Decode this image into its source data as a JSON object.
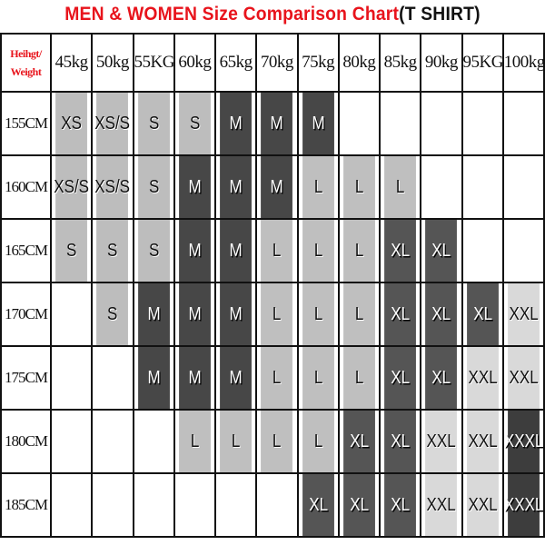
{
  "title": {
    "main": "MEN & WOMEN Size Comparison Chart",
    "suffix": "(T SHIRT)"
  },
  "corner_label": {
    "line1": "Heihgt/",
    "line2": "Weight"
  },
  "weights": [
    "45kg",
    "50kg",
    "55KG",
    "60kg",
    "65kg",
    "70kg",
    "75kg",
    "80kg",
    "85kg",
    "90kg",
    "95KG",
    "100kg"
  ],
  "rows": [
    {
      "height": "155CM",
      "sizes": [
        "XS",
        "XS/S",
        "S",
        "S",
        "M",
        "M",
        "M",
        "",
        "",
        "",
        "",
        ""
      ]
    },
    {
      "height": "160CM",
      "sizes": [
        "XS/S",
        "XS/S",
        "S",
        "M",
        "M",
        "M",
        "L",
        "L",
        "L",
        "",
        "",
        ""
      ]
    },
    {
      "height": "165CM",
      "sizes": [
        "S",
        "S",
        "S",
        "M",
        "M",
        "L",
        "L",
        "L",
        "XL",
        "XL",
        "",
        ""
      ]
    },
    {
      "height": "170CM",
      "sizes": [
        "",
        "S",
        "M",
        "M",
        "M",
        "L",
        "L",
        "L",
        "XL",
        "XL",
        "XL",
        "XXL"
      ]
    },
    {
      "height": "175CM",
      "sizes": [
        "",
        "",
        "M",
        "M",
        "M",
        "L",
        "L",
        "L",
        "XL",
        "XL",
        "XXL",
        "XXL"
      ]
    },
    {
      "height": "180CM",
      "sizes": [
        "",
        "",
        "",
        "L",
        "L",
        "L",
        "L",
        "XL",
        "XL",
        "XXL",
        "XXL",
        "XXXL"
      ]
    },
    {
      "height": "185CM",
      "sizes": [
        "",
        "",
        "",
        "",
        "",
        "",
        "XL",
        "XL",
        "XL",
        "XXL",
        "XXL",
        "XXXL"
      ]
    }
  ],
  "size_colors": {
    "XS": "#bdbdbd",
    "XS/S": "#bdbdbd",
    "S": "#bdbdbd",
    "M": "#474747",
    "L": "#bfbfbf",
    "XL": "#555555",
    "XXL": "#d9d9d9",
    "XXXL": "#3d3d3d"
  },
  "title_color": "#e8141c"
}
